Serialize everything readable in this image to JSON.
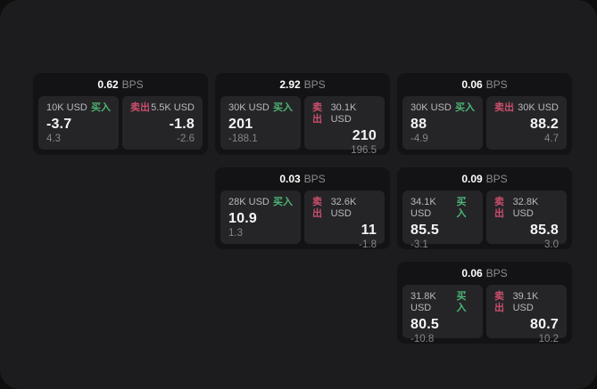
{
  "labels": {
    "buy": "买入",
    "sell": "卖出",
    "bps_suffix": "BPS"
  },
  "colors": {
    "buy_green": "#4cb573",
    "sell_red": "#cc4e6c",
    "panel_bg": "#1c1c1e",
    "card_bg": "#131315",
    "cell_bg": "#252528",
    "value_white": "#f5f5f6",
    "muted_gray": "#85858a",
    "amount_gray": "#b9b9be"
  },
  "cards": [
    {
      "bps": "0.62",
      "buy": {
        "amount": "10K USD",
        "price": "-3.7",
        "delta": "4.3"
      },
      "sell": {
        "amount": "5.5K USD",
        "price": "-1.8",
        "delta": "-2.6"
      }
    },
    {
      "bps": "2.92",
      "buy": {
        "amount": "30K USD",
        "price": "201",
        "delta": "-188.1"
      },
      "sell": {
        "amount": "30.1K USD",
        "price": "210",
        "delta": "196.5"
      }
    },
    {
      "bps": "0.06",
      "buy": {
        "amount": "30K USD",
        "price": "88",
        "delta": "-4.9"
      },
      "sell": {
        "amount": "30K USD",
        "price": "88.2",
        "delta": "4.7"
      }
    },
    {
      "bps": "0.03",
      "buy": {
        "amount": "28K USD",
        "price": "10.9",
        "delta": "1.3"
      },
      "sell": {
        "amount": "32.6K USD",
        "price": "11",
        "delta": "-1.8"
      }
    },
    {
      "bps": "0.09",
      "buy": {
        "amount": "34.1K USD",
        "price": "85.5",
        "delta": "-3.1"
      },
      "sell": {
        "amount": "32.8K USD",
        "price": "85.8",
        "delta": "3.0"
      }
    },
    {
      "bps": "0.06",
      "buy": {
        "amount": "31.8K USD",
        "price": "80.5",
        "delta": "-10.8"
      },
      "sell": {
        "amount": "39.1K USD",
        "price": "80.7",
        "delta": "10.2"
      }
    }
  ]
}
